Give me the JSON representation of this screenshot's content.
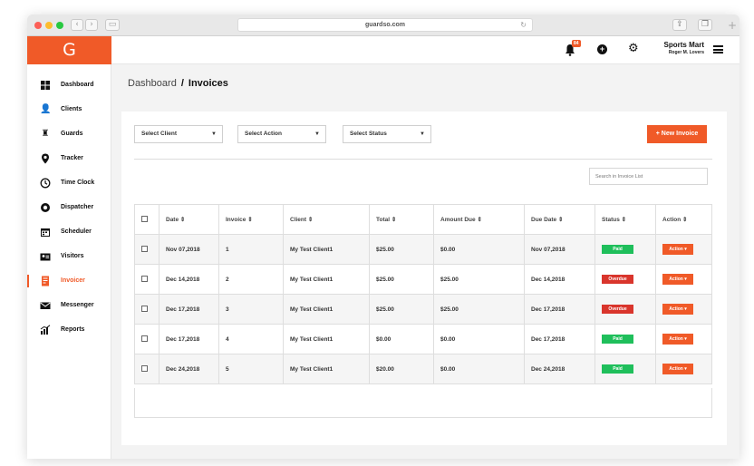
{
  "browser": {
    "url": "guardso.com"
  },
  "app": {
    "logo": "G",
    "notification_count": "84",
    "company_name": "Sports Mart",
    "user_name": "Roger M. Lovers"
  },
  "sidebar": {
    "items": [
      {
        "label": "Dashboard",
        "icon": "grid-icon"
      },
      {
        "label": "Clients",
        "icon": "users-icon"
      },
      {
        "label": "Guards",
        "icon": "guard-icon"
      },
      {
        "label": "Tracker",
        "icon": "map-pin-icon"
      },
      {
        "label": "Time Clock",
        "icon": "clock-icon"
      },
      {
        "label": "Dispatcher",
        "icon": "dispatch-icon"
      },
      {
        "label": "Scheduler",
        "icon": "calendar-icon"
      },
      {
        "label": "Visitors",
        "icon": "id-card-icon"
      },
      {
        "label": "Invoicer",
        "icon": "invoice-icon",
        "active": true
      },
      {
        "label": "Messenger",
        "icon": "envelope-icon"
      },
      {
        "label": "Reports",
        "icon": "chart-icon"
      }
    ]
  },
  "breadcrumb": {
    "parent": "Dashboard",
    "separator": "/",
    "current": "Invoices"
  },
  "filters": {
    "client": "Select Client",
    "action": "Select Action",
    "status": "Select Status"
  },
  "new_invoice_label": "+ New Invoice",
  "search": {
    "placeholder": "Search in Invoice List"
  },
  "table": {
    "headers": [
      "Date ⇕",
      "Invoice ⇕",
      "Client ⇕",
      "Total ⇕",
      "Amount Due ⇕",
      "Due Date ⇕",
      "Status ⇕",
      "Action ⇕"
    ],
    "rows": [
      {
        "date": "Nov 07,2018",
        "invoice": "1",
        "client": "My Test Client1",
        "total": "$25.00",
        "amount_due": "$0.00",
        "due_date": "Nov 07,2018",
        "status": "Paid",
        "action": "Action ▾"
      },
      {
        "date": "Dec 14,2018",
        "invoice": "2",
        "client": "My Test Client1",
        "total": "$25.00",
        "amount_due": "$25.00",
        "due_date": "Dec 14,2018",
        "status": "Overdue",
        "action": "Action ▾"
      },
      {
        "date": "Dec 17,2018",
        "invoice": "3",
        "client": "My Test Client1",
        "total": "$25.00",
        "amount_due": "$25.00",
        "due_date": "Dec 17,2018",
        "status": "Overdue",
        "action": "Action ▾"
      },
      {
        "date": "Dec 17,2018",
        "invoice": "4",
        "client": "My Test Client1",
        "total": "$0.00",
        "amount_due": "$0.00",
        "due_date": "Dec 17,2018",
        "status": "Paid",
        "action": "Action ▾"
      },
      {
        "date": "Dec 24,2018",
        "invoice": "5",
        "client": "My Test Client1",
        "total": "$20.00",
        "amount_due": "$0.00",
        "due_date": "Dec 24,2018",
        "status": "Paid",
        "action": "Action ▾"
      }
    ]
  },
  "colors": {
    "brand": "#f05a28",
    "paid": "#1fbf5b",
    "overdue": "#d9352c"
  }
}
